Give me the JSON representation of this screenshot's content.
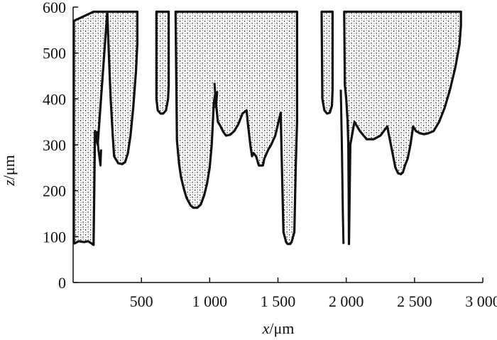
{
  "chart_data": {
    "type": "area",
    "title": "",
    "xlabel_var": "x",
    "xlabel_unit": "/μm",
    "ylabel_var": "z",
    "ylabel_unit": "/μm",
    "xlim": [
      0,
      3000
    ],
    "ylim": [
      0,
      600
    ],
    "x_ticks": [
      {
        "value": 500,
        "label": "500"
      },
      {
        "value": 1000,
        "label": "1 000"
      },
      {
        "value": 1500,
        "label": "1 500"
      },
      {
        "value": 2000,
        "label": "2 000"
      },
      {
        "value": 2500,
        "label": "2 500"
      },
      {
        "value": 3000,
        "label": "3 000"
      }
    ],
    "y_ticks": [
      {
        "value": 0,
        "label": "0"
      },
      {
        "value": 100,
        "label": "100"
      },
      {
        "value": 200,
        "label": "200"
      },
      {
        "value": 300,
        "label": "300"
      },
      {
        "value": 400,
        "label": "400"
      },
      {
        "value": 500,
        "label": "500"
      },
      {
        "value": 600,
        "label": "600"
      }
    ],
    "fill": "stippled",
    "outline_color": "#111111",
    "regions": [
      {
        "x": [
          5,
          5,
          10,
          40,
          80,
          110,
          150,
          160,
          180,
          250,
          265,
          275,
          290,
          300,
          330,
          360,
          380,
          400,
          420,
          440,
          460,
          470,
          470,
          300,
          200,
          150
        ],
        "z": [
          570,
          90,
          85,
          90,
          88,
          90,
          82,
          330,
          300,
          590,
          470,
          400,
          320,
          275,
          260,
          258,
          262,
          280,
          320,
          380,
          460,
          520,
          590,
          590,
          590,
          590
        ]
      },
      {
        "x": [
          610,
          610,
          620,
          640,
          660,
          680,
          695,
          700,
          700
        ],
        "z": [
          590,
          400,
          375,
          368,
          368,
          375,
          400,
          430,
          590
        ]
      },
      {
        "x": [
          750,
          760,
          775,
          790,
          810,
          830,
          860,
          880,
          910,
          935,
          960,
          980,
          1000,
          1015,
          1030,
          1040,
          1050,
          1060,
          1080,
          1100,
          1120,
          1150,
          1180,
          1210,
          1240,
          1270,
          1280,
          1300,
          1310,
          1320,
          1340,
          1360,
          1390,
          1400,
          1430,
          1450,
          1480,
          1520,
          1540,
          1560,
          1570,
          1590,
          1600,
          1620,
          1630,
          1640,
          1640,
          1500,
          1200,
          1000,
          900,
          800
        ],
        "z": [
          590,
          310,
          260,
          230,
          205,
          185,
          168,
          163,
          163,
          170,
          190,
          215,
          250,
          300,
          390,
          410,
          380,
          350,
          340,
          328,
          320,
          322,
          330,
          345,
          368,
          375,
          345,
          295,
          275,
          282,
          275,
          255,
          255,
          270,
          290,
          300,
          320,
          370,
          110,
          88,
          84,
          84,
          88,
          110,
          250,
          350,
          590,
          590,
          590,
          590,
          590,
          590
        ]
      },
      {
        "x": [
          1820,
          1825,
          1840,
          1860,
          1880,
          1895,
          1900,
          1900
        ],
        "z": [
          590,
          400,
          375,
          368,
          370,
          385,
          420,
          590
        ]
      },
      {
        "x": [
          1985,
          1990,
          2000,
          2010,
          2015,
          2018,
          2020,
          2025,
          2030,
          2060,
          2100,
          2150,
          2200,
          2250,
          2300,
          2340,
          2360,
          2380,
          2400,
          2415,
          2430,
          2450,
          2470,
          2480,
          2490,
          2510,
          2540,
          2570,
          2600,
          2640,
          2680,
          2720,
          2760,
          2800,
          2830,
          2840,
          2840,
          2500,
          2200,
          2020
        ],
        "z": [
          590,
          430,
          400,
          350,
          300,
          200,
          84,
          200,
          300,
          350,
          330,
          312,
          312,
          320,
          340,
          280,
          250,
          238,
          236,
          240,
          255,
          270,
          300,
          320,
          340,
          330,
          325,
          323,
          325,
          330,
          350,
          380,
          420,
          470,
          520,
          560,
          590,
          590,
          590,
          590
        ]
      }
    ],
    "cracks": [
      {
        "x": [
          175,
          185,
          200,
          205
        ],
        "z": [
          330,
          290,
          255,
          290
        ]
      },
      {
        "x": [
          1035,
          1045,
          1055,
          1045
        ],
        "z": [
          435,
          390,
          415,
          380
        ]
      },
      {
        "x": [
          1960,
          1968,
          1975,
          1980
        ],
        "z": [
          420,
          300,
          150,
          84
        ]
      }
    ]
  }
}
